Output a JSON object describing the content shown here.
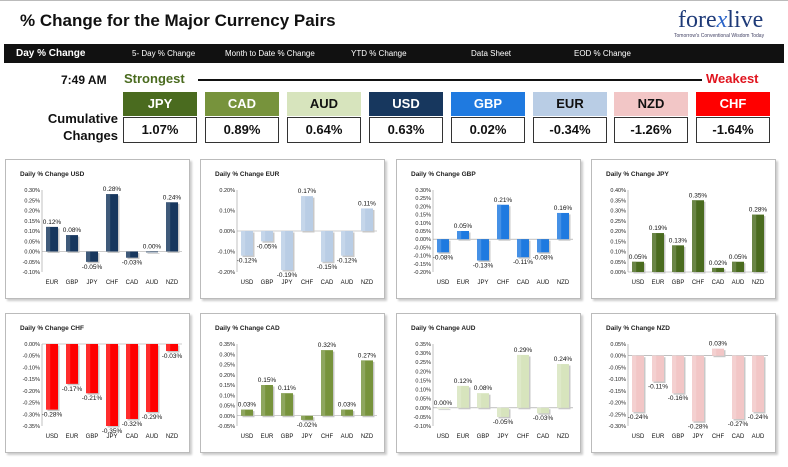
{
  "header": {
    "title": "% Change for the Major Currency Pairs",
    "logo_text_a": "fore",
    "logo_text_x": "x",
    "logo_text_b": "live",
    "logo_tagline": "Tomorrow's Conventional Wisdom Today"
  },
  "tabs": [
    {
      "label": "Day % Change",
      "active": true
    },
    {
      "label": "5- Day % Change",
      "active": false
    },
    {
      "label": "Month to Date % Change",
      "active": false
    },
    {
      "label": "YTD % Change",
      "active": false
    },
    {
      "label": "Data Sheet",
      "active": false
    },
    {
      "label": "EOD % Change",
      "active": false
    }
  ],
  "summary": {
    "time": "7:49 AM",
    "strongest_label": "Strongest",
    "weakest_label": "Weakest",
    "cumulative_label": "Cumulative Changes",
    "currencies": [
      {
        "code": "JPY",
        "value": "1.07%",
        "bg": "#4a6b1f",
        "fg": "#ffffff"
      },
      {
        "code": "CAD",
        "value": "0.89%",
        "bg": "#77933c",
        "fg": "#ffffff"
      },
      {
        "code": "AUD",
        "value": "0.64%",
        "bg": "#d7e4bd",
        "fg": "#111111"
      },
      {
        "code": "USD",
        "value": "0.63%",
        "bg": "#17375e",
        "fg": "#ffffff"
      },
      {
        "code": "GBP",
        "value": "0.02%",
        "bg": "#1f7ae0",
        "fg": "#ffffff"
      },
      {
        "code": "EUR",
        "value": "-0.34%",
        "bg": "#b9cde5",
        "fg": "#111111"
      },
      {
        "code": "NZD",
        "value": "-1.26%",
        "bg": "#f2c6c6",
        "fg": "#111111"
      },
      {
        "code": "CHF",
        "value": "-1.64%",
        "bg": "#ff0000",
        "fg": "#ffffff"
      }
    ]
  },
  "chart_data": [
    {
      "type": "bar",
      "title": "Daily % Change USD",
      "categories": [
        "EUR",
        "GBP",
        "JPY",
        "CHF",
        "CAD",
        "AUD",
        "NZD"
      ],
      "values": [
        0.12,
        0.08,
        -0.05,
        0.28,
        -0.03,
        0.0,
        0.24
      ],
      "labels": [
        "0.12%",
        "0.08%",
        "-0.05%",
        "0.28%",
        "-0.03%",
        "0.00%",
        "0.24%"
      ],
      "ylim": [
        -0.1,
        0.3
      ],
      "ticks": [
        "0.30%",
        "0.25%",
        "0.20%",
        "0.15%",
        "0.10%",
        "0.05%",
        "0.00%",
        "-0.05%",
        "-0.10%"
      ],
      "color": "#17375e"
    },
    {
      "type": "bar",
      "title": "Daily % Change EUR",
      "categories": [
        "USD",
        "GBP",
        "JPY",
        "CHF",
        "CAD",
        "AUD",
        "NZD"
      ],
      "values": [
        -0.12,
        -0.05,
        -0.19,
        0.17,
        -0.15,
        -0.12,
        0.11
      ],
      "labels": [
        "-0.12%",
        "-0.05%",
        "-0.19%",
        "0.17%",
        "-0.15%",
        "-0.12%",
        "0.11%"
      ],
      "ylim": [
        -0.2,
        0.2
      ],
      "ticks": [
        "0.20%",
        "0.10%",
        "0.00%",
        "-0.10%",
        "-0.20%"
      ],
      "color": "#b9cde5"
    },
    {
      "type": "bar",
      "title": "Daily % Change GBP",
      "categories": [
        "USD",
        "EUR",
        "JPY",
        "CHF",
        "CAD",
        "AUD",
        "NZD"
      ],
      "values": [
        -0.08,
        0.05,
        -0.13,
        0.21,
        -0.11,
        -0.08,
        0.16
      ],
      "labels": [
        "-0.08%",
        "0.05%",
        "-0.13%",
        "0.21%",
        "-0.11%",
        "-0.08%",
        "0.16%"
      ],
      "ylim": [
        -0.2,
        0.3
      ],
      "ticks": [
        "0.30%",
        "0.25%",
        "0.20%",
        "0.15%",
        "0.10%",
        "0.05%",
        "0.00%",
        "-0.05%",
        "-0.10%",
        "-0.15%",
        "-0.20%"
      ],
      "color": "#1f7ae0"
    },
    {
      "type": "bar",
      "title": "Daily % Change JPY",
      "categories": [
        "USD",
        "EUR",
        "GBP",
        "CHF",
        "CAD",
        "AUD",
        "NZD"
      ],
      "values": [
        0.05,
        0.19,
        0.13,
        0.35,
        0.02,
        0.05,
        0.28
      ],
      "labels": [
        "0.05%",
        "0.19%",
        "0.13%",
        "0.35%",
        "0.02%",
        "0.05%",
        "0.28%"
      ],
      "ylim": [
        0.0,
        0.4
      ],
      "ticks": [
        "0.40%",
        "0.35%",
        "0.30%",
        "0.25%",
        "0.20%",
        "0.15%",
        "0.10%",
        "0.05%",
        "0.00%"
      ],
      "color": "#4a6b1f"
    },
    {
      "type": "bar",
      "title": "Daily % Change CHF",
      "categories": [
        "USD",
        "EUR",
        "GBP",
        "JPY",
        "CAD",
        "AUD",
        "NZD"
      ],
      "values": [
        -0.28,
        -0.17,
        -0.21,
        -0.35,
        -0.32,
        -0.29,
        -0.03
      ],
      "labels": [
        "-0.28%",
        "-0.17%",
        "-0.21%",
        "-0.35%",
        "-0.32%",
        "-0.29%",
        "-0.03%"
      ],
      "ylim": [
        -0.35,
        0.0
      ],
      "ticks": [
        "0.00%",
        "-0.05%",
        "-0.10%",
        "-0.15%",
        "-0.20%",
        "-0.25%",
        "-0.30%",
        "-0.35%"
      ],
      "color": "#ff0000"
    },
    {
      "type": "bar",
      "title": "Daily % Change CAD",
      "categories": [
        "USD",
        "EUR",
        "GBP",
        "JPY",
        "CHF",
        "AUD",
        "NZD"
      ],
      "values": [
        0.03,
        0.15,
        0.11,
        -0.02,
        0.32,
        0.03,
        0.27
      ],
      "labels": [
        "0.03%",
        "0.15%",
        "0.11%",
        "-0.02%",
        "0.32%",
        "0.03%",
        "0.27%"
      ],
      "ylim": [
        -0.05,
        0.35
      ],
      "ticks": [
        "0.35%",
        "0.30%",
        "0.25%",
        "0.20%",
        "0.15%",
        "0.10%",
        "0.05%",
        "0.00%",
        "-0.05%"
      ],
      "color": "#77933c"
    },
    {
      "type": "bar",
      "title": "Daily % Change AUD",
      "categories": [
        "USD",
        "EUR",
        "GBP",
        "JPY",
        "CHF",
        "CAD",
        "NZD"
      ],
      "values": [
        0.0,
        0.12,
        0.08,
        -0.05,
        0.29,
        -0.03,
        0.24
      ],
      "labels": [
        "0.00%",
        "0.12%",
        "0.08%",
        "-0.05%",
        "0.29%",
        "-0.03%",
        "0.24%"
      ],
      "ylim": [
        -0.1,
        0.35
      ],
      "ticks": [
        "0.35%",
        "0.30%",
        "0.25%",
        "0.20%",
        "0.15%",
        "0.10%",
        "0.05%",
        "0.00%",
        "-0.05%",
        "-0.10%"
      ],
      "color": "#d7e4bd"
    },
    {
      "type": "bar",
      "title": "Daily % Change NZD",
      "categories": [
        "USD",
        "EUR",
        "GBP",
        "JPY",
        "CHF",
        "CAD",
        "AUD"
      ],
      "values": [
        -0.24,
        -0.11,
        -0.16,
        -0.28,
        0.03,
        -0.27,
        -0.24
      ],
      "labels": [
        "-0.24%",
        "-0.11%",
        "-0.16%",
        "-0.28%",
        "0.03%",
        "-0.27%",
        "-0.24%"
      ],
      "ylim": [
        -0.3,
        0.05
      ],
      "ticks": [
        "0.05%",
        "0.00%",
        "-0.05%",
        "-0.10%",
        "-0.15%",
        "-0.20%",
        "-0.25%",
        "-0.30%"
      ],
      "color": "#f2c6c6"
    }
  ]
}
